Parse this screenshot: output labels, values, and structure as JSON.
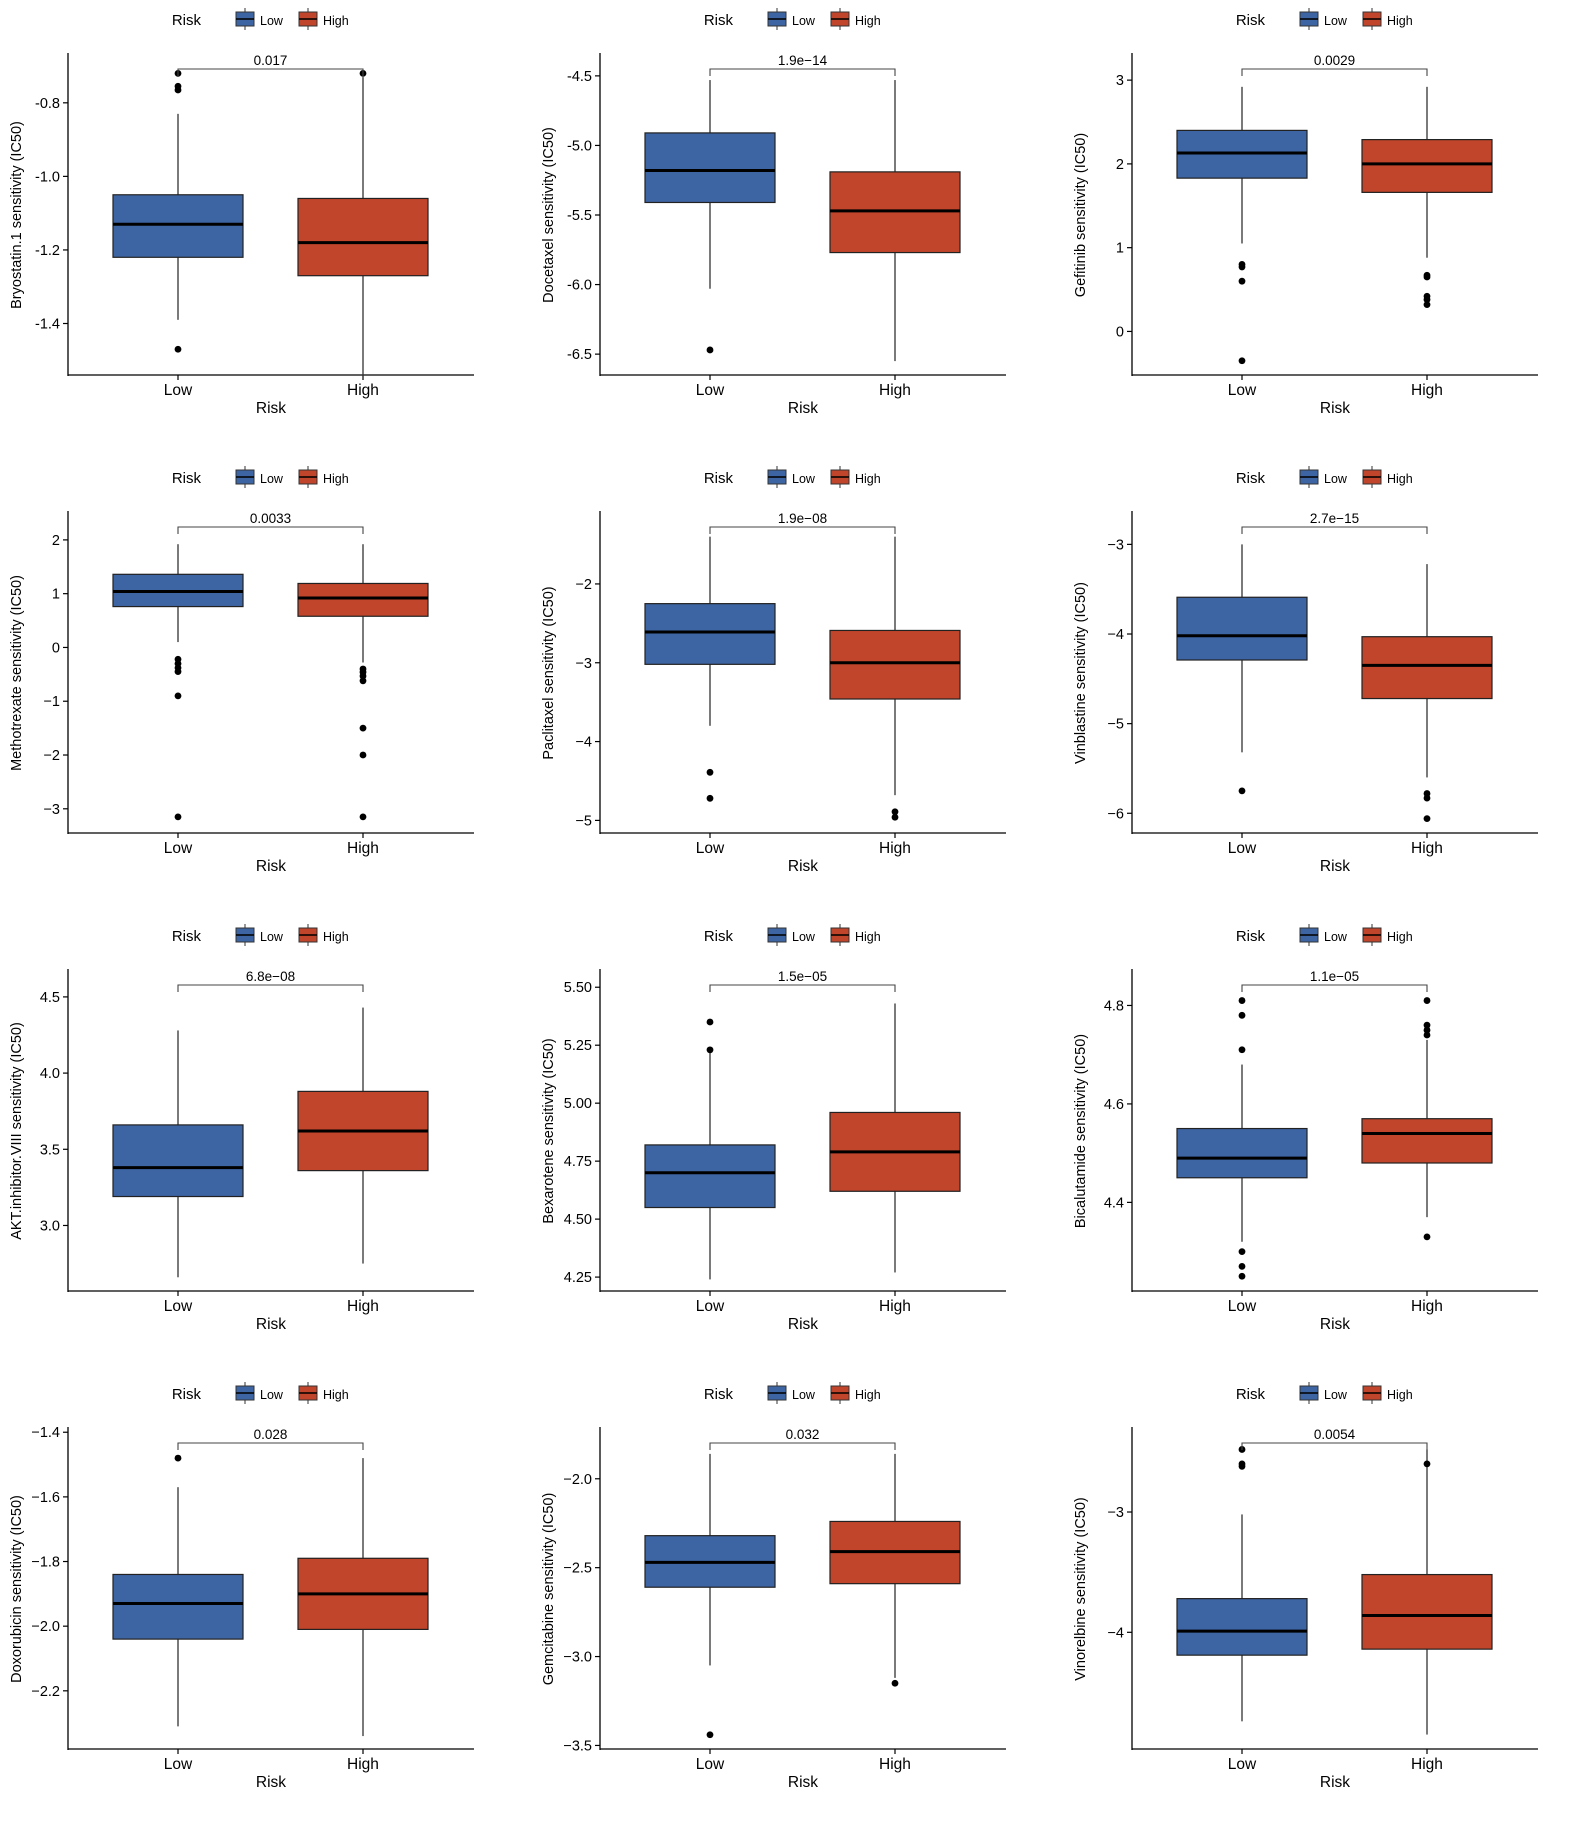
{
  "figure": {
    "legend_title": "Risk",
    "groups": [
      "Low",
      "High"
    ],
    "xlabel": "Risk",
    "colors": {
      "Low": "#3d64a3",
      "High": "#c0452a"
    }
  },
  "chart_data": [
    {
      "type": "box",
      "title": "",
      "xlabel": "Risk",
      "ylabel": "Bryostatin.1 sensitivity (IC50)",
      "categories": [
        "Low",
        "High"
      ],
      "legend_title": "Risk",
      "legend_position": "top",
      "ylim": [
        -1.54,
        -0.67
      ],
      "yticks": [
        -0.8,
        -1.0,
        -1.2,
        -1.4
      ],
      "ytick_labels": [
        "-0.8",
        "-1.0",
        "-1.2",
        "-1.4"
      ],
      "pvalue": "0.017",
      "boxes": [
        {
          "group": "Low",
          "min": -1.39,
          "q1": -1.22,
          "median": -1.13,
          "q3": -1.05,
          "max": -0.83,
          "outliers": [
            -0.72,
            -0.755,
            -0.765,
            -1.47
          ]
        },
        {
          "group": "High",
          "min": -1.55,
          "q1": -1.27,
          "median": -1.18,
          "q3": -1.06,
          "max": -0.73,
          "outliers": [
            -0.72
          ]
        }
      ]
    },
    {
      "type": "box",
      "title": "",
      "xlabel": "Risk",
      "ylabel": "Docetaxel sensitivity (IC50)",
      "categories": [
        "Low",
        "High"
      ],
      "legend_title": "Risk",
      "legend_position": "top",
      "ylim": [
        -6.65,
        -4.35
      ],
      "yticks": [
        -4.5,
        -5.0,
        -5.5,
        -6.0,
        -6.5
      ],
      "ytick_labels": [
        "-4.5",
        "-5.0",
        "-5.5",
        "-6.0",
        "-6.5"
      ],
      "pvalue": "1.9e−14",
      "boxes": [
        {
          "group": "Low",
          "min": -6.03,
          "q1": -5.41,
          "median": -5.18,
          "q3": -4.91,
          "max": -4.53,
          "outliers": [
            -6.47
          ]
        },
        {
          "group": "High",
          "min": -6.55,
          "q1": -5.77,
          "median": -5.47,
          "q3": -5.19,
          "max": -4.53,
          "outliers": []
        }
      ]
    },
    {
      "type": "box",
      "title": "",
      "xlabel": "Risk",
      "ylabel": "Gefitinib sensitivity (IC50)",
      "categories": [
        "Low",
        "High"
      ],
      "legend_title": "Risk",
      "legend_position": "top",
      "ylim": [
        -0.52,
        3.3
      ],
      "yticks": [
        3,
        2,
        1,
        0
      ],
      "ytick_labels": [
        "3",
        "2",
        "1",
        "0"
      ],
      "pvalue": "0.0029",
      "boxes": [
        {
          "group": "Low",
          "min": 1.05,
          "q1": 1.83,
          "median": 2.13,
          "q3": 2.4,
          "max": 2.92,
          "outliers": [
            0.8,
            0.77,
            0.6,
            -0.35
          ]
        },
        {
          "group": "High",
          "min": 0.88,
          "q1": 1.66,
          "median": 2.0,
          "q3": 2.29,
          "max": 2.92,
          "outliers": [
            0.67,
            0.65,
            0.42,
            0.38,
            0.32
          ]
        }
      ]
    },
    {
      "type": "box",
      "title": "",
      "xlabel": "Risk",
      "ylabel": "Methotrexate sensitivity (IC50)",
      "categories": [
        "Low",
        "High"
      ],
      "legend_title": "Risk",
      "legend_position": "top",
      "ylim": [
        -3.45,
        2.5
      ],
      "yticks": [
        2,
        1,
        0,
        -1,
        -2,
        -3
      ],
      "ytick_labels": [
        "2",
        "1",
        "0",
        "−1",
        "−2",
        "−3"
      ],
      "pvalue": "0.0033",
      "boxes": [
        {
          "group": "Low",
          "min": 0.1,
          "q1": 0.76,
          "median": 1.04,
          "q3": 1.36,
          "max": 1.92,
          "outliers": [
            -0.22,
            -0.3,
            -0.38,
            -0.45,
            -0.9,
            -3.15
          ]
        },
        {
          "group": "High",
          "min": -0.28,
          "q1": 0.58,
          "median": 0.92,
          "q3": 1.19,
          "max": 1.92,
          "outliers": [
            -0.4,
            -0.46,
            -0.53,
            -0.62,
            -1.5,
            -2.0,
            -3.15
          ]
        }
      ]
    },
    {
      "type": "box",
      "title": "",
      "xlabel": "Risk",
      "ylabel": "Paclitaxel sensitivity (IC50)",
      "categories": [
        "Low",
        "High"
      ],
      "legend_title": "Risk",
      "legend_position": "top",
      "ylim": [
        -5.16,
        -1.1
      ],
      "yticks": [
        -2,
        -3,
        -4,
        -5
      ],
      "ytick_labels": [
        "−2",
        "−3",
        "−4",
        "−5"
      ],
      "pvalue": "1.9e−08",
      "boxes": [
        {
          "group": "Low",
          "min": -3.8,
          "q1": -3.02,
          "median": -2.61,
          "q3": -2.25,
          "max": -1.4,
          "outliers": [
            -4.39,
            -4.72
          ]
        },
        {
          "group": "High",
          "min": -4.68,
          "q1": -3.46,
          "median": -3.0,
          "q3": -2.59,
          "max": -1.4,
          "outliers": [
            -4.89,
            -4.96
          ]
        }
      ]
    },
    {
      "type": "box",
      "title": "",
      "xlabel": "Risk",
      "ylabel": "Vinblastine sensitivity (IC50)",
      "categories": [
        "Low",
        "High"
      ],
      "legend_title": "Risk",
      "legend_position": "top",
      "ylim": [
        -6.22,
        -2.65
      ],
      "yticks": [
        -3,
        -4,
        -5,
        -6
      ],
      "ytick_labels": [
        "−3",
        "−4",
        "−5",
        "−6"
      ],
      "pvalue": "2.7e−15",
      "boxes": [
        {
          "group": "Low",
          "min": -5.32,
          "q1": -4.29,
          "median": -4.02,
          "q3": -3.59,
          "max": -3.0,
          "outliers": [
            -5.75
          ]
        },
        {
          "group": "High",
          "min": -5.6,
          "q1": -4.72,
          "median": -4.35,
          "q3": -4.03,
          "max": -3.22,
          "outliers": [
            -5.78,
            -5.83,
            -6.06
          ]
        }
      ]
    },
    {
      "type": "box",
      "title": "",
      "xlabel": "Risk",
      "ylabel": "AKT.inhibitor.VIII sensitivity (IC50)",
      "categories": [
        "Low",
        "High"
      ],
      "legend_title": "Risk",
      "legend_position": "top",
      "ylim": [
        2.57,
        4.67
      ],
      "yticks": [
        4.5,
        4.0,
        3.5,
        3.0
      ],
      "ytick_labels": [
        "4.5",
        "4.0",
        "3.5",
        "3.0"
      ],
      "pvalue": "6.8e−08",
      "boxes": [
        {
          "group": "Low",
          "min": 2.66,
          "q1": 3.19,
          "median": 3.38,
          "q3": 3.66,
          "max": 4.28,
          "outliers": []
        },
        {
          "group": "High",
          "min": 2.75,
          "q1": 3.36,
          "median": 3.62,
          "q3": 3.88,
          "max": 4.43,
          "outliers": []
        }
      ]
    },
    {
      "type": "box",
      "title": "",
      "xlabel": "Risk",
      "ylabel": "Bexarotene sensitivity (IC50)",
      "categories": [
        "Low",
        "High"
      ],
      "legend_title": "Risk",
      "legend_position": "top",
      "ylim": [
        4.19,
        5.57
      ],
      "yticks": [
        5.5,
        5.25,
        5.0,
        4.75,
        4.5,
        4.25
      ],
      "ytick_labels": [
        "5.50",
        "5.25",
        "5.00",
        "4.75",
        "4.50",
        "4.25"
      ],
      "pvalue": "1.5e−05",
      "boxes": [
        {
          "group": "Low",
          "min": 4.24,
          "q1": 4.55,
          "median": 4.7,
          "q3": 4.82,
          "max": 5.22,
          "outliers": [
            5.35,
            5.23
          ]
        },
        {
          "group": "High",
          "min": 4.27,
          "q1": 4.62,
          "median": 4.79,
          "q3": 4.96,
          "max": 5.43,
          "outliers": []
        }
      ]
    },
    {
      "type": "box",
      "title": "",
      "xlabel": "Risk",
      "ylabel": "Bicalutamide sensitivity (IC50)",
      "categories": [
        "Low",
        "High"
      ],
      "legend_title": "Risk",
      "legend_position": "top",
      "ylim": [
        4.22,
        4.87
      ],
      "yticks": [
        4.8,
        4.6,
        4.4
      ],
      "ytick_labels": [
        "4.8",
        "4.6",
        "4.4"
      ],
      "pvalue": "1.1e−05",
      "boxes": [
        {
          "group": "Low",
          "min": 4.32,
          "q1": 4.45,
          "median": 4.49,
          "q3": 4.55,
          "max": 4.68,
          "outliers": [
            4.81,
            4.78,
            4.71,
            4.3,
            4.27,
            4.25
          ]
        },
        {
          "group": "High",
          "min": 4.37,
          "q1": 4.48,
          "median": 4.54,
          "q3": 4.57,
          "max": 4.73,
          "outliers": [
            4.81,
            4.76,
            4.75,
            4.74,
            4.33
          ]
        }
      ]
    },
    {
      "type": "box",
      "title": "",
      "xlabel": "Risk",
      "ylabel": "Doxorubicin sensitivity (IC50)",
      "categories": [
        "Low",
        "High"
      ],
      "legend_title": "Risk",
      "legend_position": "top",
      "ylim": [
        -2.38,
        -1.39
      ],
      "yticks": [
        -1.4,
        -1.6,
        -1.8,
        -2.0,
        -2.2
      ],
      "ytick_labels": [
        "−1.4",
        "−1.6",
        "−1.8",
        "−2.0",
        "−2.2"
      ],
      "pvalue": "0.028",
      "boxes": [
        {
          "group": "Low",
          "min": -2.31,
          "q1": -2.04,
          "median": -1.93,
          "q3": -1.84,
          "max": -1.57,
          "outliers": [
            -1.48
          ]
        },
        {
          "group": "High",
          "min": -2.34,
          "q1": -2.01,
          "median": -1.9,
          "q3": -1.79,
          "max": -1.48,
          "outliers": []
        }
      ]
    },
    {
      "type": "box",
      "title": "",
      "xlabel": "Risk",
      "ylabel": "Gemcitabine sensitivity (IC50)",
      "categories": [
        "Low",
        "High"
      ],
      "legend_title": "Risk",
      "legend_position": "top",
      "ylim": [
        -3.52,
        -1.72
      ],
      "yticks": [
        -2.0,
        -2.5,
        -3.0,
        -3.5
      ],
      "ytick_labels": [
        "−2.0",
        "−2.5",
        "−3.0",
        "−3.5"
      ],
      "pvalue": "0.032",
      "boxes": [
        {
          "group": "Low",
          "min": -3.05,
          "q1": -2.61,
          "median": -2.47,
          "q3": -2.32,
          "max": -1.86,
          "outliers": [
            -3.44
          ]
        },
        {
          "group": "High",
          "min": -3.12,
          "q1": -2.59,
          "median": -2.41,
          "q3": -2.24,
          "max": -1.86,
          "outliers": [
            -3.15
          ]
        }
      ]
    },
    {
      "type": "box",
      "title": "",
      "xlabel": "Risk",
      "ylabel": "Vinorelbine sensitivity (IC50)",
      "categories": [
        "Low",
        "High"
      ],
      "legend_title": "Risk",
      "legend_position": "top",
      "ylim": [
        -4.97,
        -2.31
      ],
      "yticks": [
        -3,
        -4
      ],
      "ytick_labels": [
        "−3",
        "−4"
      ],
      "pvalue": "0.0054",
      "boxes": [
        {
          "group": "Low",
          "min": -4.74,
          "q1": -4.19,
          "median": -3.99,
          "q3": -3.72,
          "max": -3.02,
          "outliers": [
            -2.48,
            -2.6,
            -2.62
          ]
        },
        {
          "group": "High",
          "min": -4.85,
          "q1": -4.14,
          "median": -3.86,
          "q3": -3.52,
          "max": -2.48,
          "outliers": [
            -2.6
          ]
        }
      ]
    }
  ]
}
